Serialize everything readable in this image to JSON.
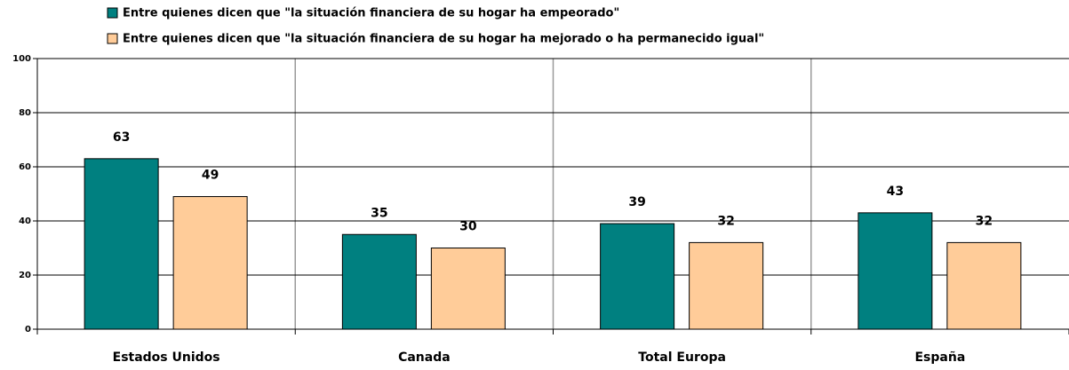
{
  "chart_data": {
    "type": "bar",
    "categories": [
      "Estados Unidos",
      "Canada",
      "Total Europa",
      "España"
    ],
    "series": [
      {
        "name": "Entre quienes dicen que \"la situación financiera de su hogar ha empeorado\"",
        "color": "#008080",
        "values": [
          63,
          35,
          39,
          43
        ]
      },
      {
        "name": "Entre quienes dicen que \"la situación financiera de su hogar ha mejorado o ha permanecido igual\"",
        "color": "#ffcc99",
        "values": [
          49,
          30,
          32,
          32
        ]
      }
    ],
    "ylim": [
      0,
      100
    ],
    "yticks": [
      0,
      20,
      40,
      60,
      80,
      100
    ],
    "grid": true
  }
}
